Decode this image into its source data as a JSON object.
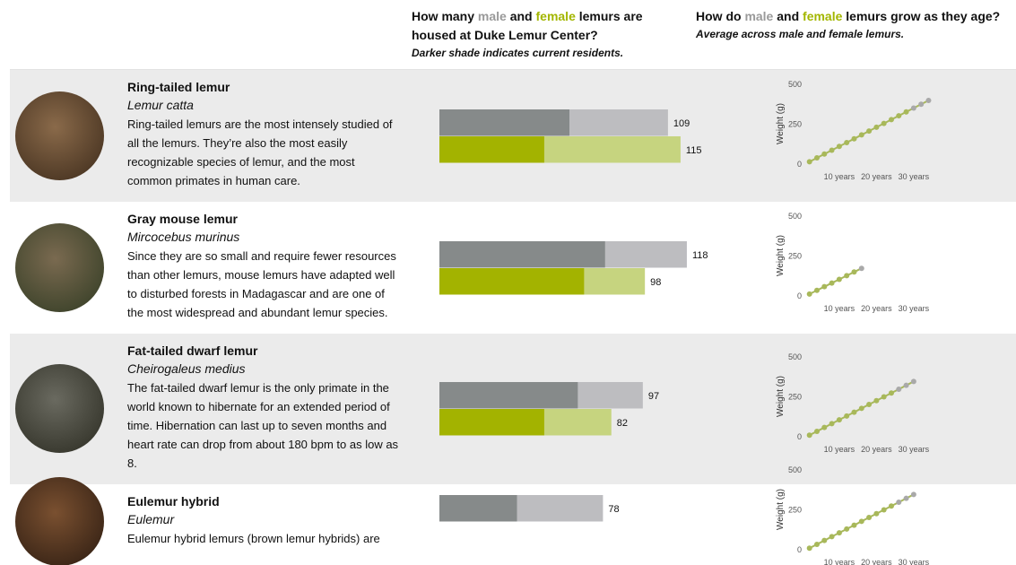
{
  "header": {
    "bar_title": [
      "How many ",
      "male",
      " and ",
      "female",
      " lemurs are housed at Duke Lemur Center?"
    ],
    "bar_subtitle": "Darker shade indicates current residents.",
    "line_title": [
      "How do ",
      "male",
      " and ",
      "female",
      " lemurs grow as they age?"
    ],
    "line_subtitle": "Average across male and female lemurs."
  },
  "colors": {
    "male_text": "#9a9a9a",
    "female_text": "#a3b600",
    "male_current": "#868a8a",
    "male_total": "#bdbdc0",
    "female_current": "#a3b300",
    "female_total": "#c6d47f",
    "male_point": "#a9a9a9",
    "female_point": "#a8b85a"
  },
  "bar_xlim": [
    0,
    130
  ],
  "growth_axes": {
    "ylabel": "Weight (g)",
    "ylim": [
      0,
      500
    ],
    "yticks": [
      0,
      250,
      500
    ],
    "xlim": [
      -10.7,
      37.5
    ],
    "xticks": [
      {
        "value": 10,
        "label": "10 years"
      },
      {
        "value": 20,
        "label": "20 years"
      },
      {
        "value": 30,
        "label": "30 years"
      }
    ]
  },
  "rows": [
    {
      "name": "Ring-tailed lemur",
      "latin": "Lemur catta",
      "description": "Ring-tailed lemurs are the most intensely studied of all the lemurs. They’re also the most easily recognizable species of lemur, and the most common primates in human care.",
      "bars": {
        "male_total": 109,
        "male_current": 62,
        "female_total": 115,
        "female_current": 50
      },
      "growth": {
        "x": [
          2,
          4,
          6,
          8,
          10,
          12,
          14,
          16,
          18,
          20,
          22,
          24,
          26,
          28,
          30,
          32,
          34
        ],
        "values": [
          15,
          39,
          63,
          87,
          111,
          135,
          159,
          183,
          207,
          231,
          255,
          279,
          303,
          327,
          351,
          375,
          399
        ],
        "point_colors": [
          "female",
          "female",
          "female",
          "female",
          "female",
          "female",
          "female",
          "female",
          "female",
          "female",
          "female",
          "female",
          "female",
          "female",
          "male",
          "male",
          "male"
        ]
      }
    },
    {
      "name": "Gray mouse lemur",
      "latin": "Mircocebus murinus",
      "description": "Since they are so small and require fewer resources than other lemurs, mouse lemurs have adapted well to disturbed forests in Madagascar and are one of the most widespread and abundant lemur species.",
      "bars": {
        "male_total": 118,
        "male_current": 79,
        "female_total": 98,
        "female_current": 69
      },
      "growth": {
        "x": [
          2,
          4,
          6,
          8,
          10,
          12,
          14,
          16
        ],
        "values": [
          12,
          35,
          58,
          81,
          104,
          127,
          150,
          173
        ],
        "point_colors": [
          "female",
          "female",
          "female",
          "female",
          "female",
          "female",
          "female",
          "male"
        ]
      }
    },
    {
      "name": "Fat-tailed dwarf lemur",
      "latin": "Cheirogaleus medius",
      "description": "The fat-tailed dwarf lemur is the only primate in the world known to hibernate for an extended period of time. Hibernation can last up to seven months and heart rate can drop from about 180 bpm to as low as 8.",
      "bars": {
        "male_total": 97,
        "male_current": 66,
        "female_total": 82,
        "female_current": 50
      },
      "growth": {
        "x": [
          2,
          4,
          6,
          8,
          10,
          12,
          14,
          16,
          18,
          20,
          22,
          24,
          26,
          28,
          30
        ],
        "values": [
          10,
          34,
          58,
          82,
          106,
          130,
          154,
          178,
          202,
          226,
          250,
          274,
          298,
          322,
          346
        ],
        "point_colors": [
          "female",
          "female",
          "female",
          "female",
          "female",
          "female",
          "female",
          "female",
          "female",
          "female",
          "female",
          "female",
          "male",
          "male",
          "male"
        ]
      }
    },
    {
      "name": "Eulemur hybrid",
      "latin": "Eulemur",
      "description": "Eulemur hybrid lemurs (brown lemur hybrids) are",
      "bars": {
        "male_total": 78,
        "male_current": 37
      },
      "growth": {
        "x": [
          2,
          4,
          6,
          8,
          10,
          12,
          14,
          16,
          18,
          20,
          22,
          24,
          26,
          28,
          30
        ],
        "values": [
          10,
          34,
          58,
          82,
          106,
          130,
          154,
          178,
          202,
          226,
          250,
          274,
          298,
          322,
          346
        ],
        "point_colors": [
          "female",
          "female",
          "female",
          "female",
          "female",
          "female",
          "female",
          "female",
          "female",
          "female",
          "female",
          "female",
          "male",
          "male",
          "male"
        ]
      }
    }
  ]
}
